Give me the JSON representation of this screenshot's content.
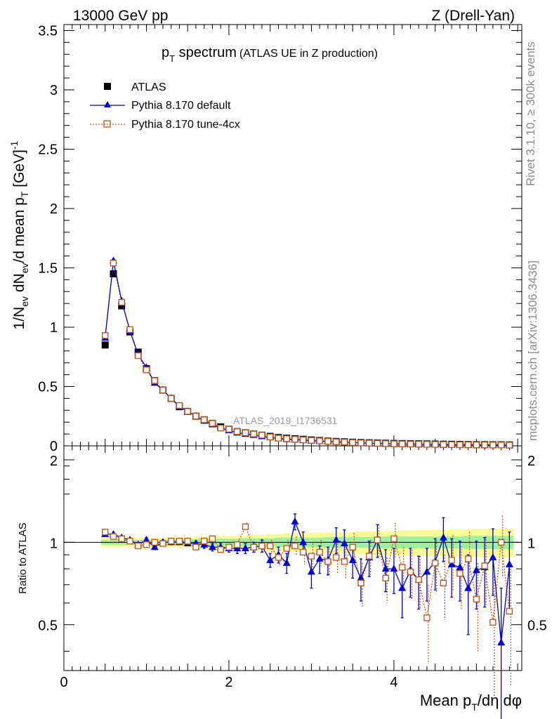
{
  "header": {
    "left": "13000 GeV pp",
    "right": "Z (Drell-Yan)"
  },
  "side_text": {
    "rivet": "Rivet 3.1.10, ≥ 300k events",
    "mcplots": "mcplots.cern.ch [arXiv:1306.3436]"
  },
  "watermark": "ATLAS_2019_I1736531",
  "colors": {
    "atlas": "#000000",
    "default": "#0000cc",
    "tune": "#c05a1e",
    "band_inner": "#a0f0a0",
    "band_outer": "#fafa96"
  },
  "chart_data": [
    {
      "type": "line",
      "panel": "main",
      "title": "p_T spectrum (ATLAS UE in Z production)",
      "title_main": "p",
      "title_sub": "T",
      "title_word": " spectrum",
      "title_paren": "(ATLAS UE in Z production)",
      "ylabel": "1/N_ev dN_ev/d mean p_T [GeV]^-1",
      "ylim": [
        0,
        3.55
      ],
      "xlim": [
        0,
        5.55
      ],
      "yticks": [
        "0",
        "0.5",
        "1",
        "1.5",
        "2",
        "2.5",
        "3",
        "3.5"
      ],
      "legend": [
        "ATLAS",
        "Pythia 8.170 default",
        "Pythia 8.170 tune-4cx"
      ],
      "x": [
        0.5,
        0.6,
        0.7,
        0.8,
        0.9,
        1.0,
        1.1,
        1.2,
        1.3,
        1.4,
        1.5,
        1.6,
        1.7,
        1.8,
        1.9,
        2.0,
        2.1,
        2.2,
        2.3,
        2.4,
        2.5,
        2.6,
        2.7,
        2.8,
        2.9,
        3.0,
        3.1,
        3.2,
        3.3,
        3.4,
        3.5,
        3.6,
        3.7,
        3.8,
        3.9,
        4.0,
        4.1,
        4.2,
        4.3,
        4.4,
        4.5,
        4.6,
        4.7,
        4.8,
        4.9,
        5.0,
        5.1,
        5.2,
        5.3,
        5.4
      ],
      "series": [
        {
          "name": "ATLAS",
          "values": [
            0.85,
            1.45,
            1.18,
            0.96,
            0.79,
            0.65,
            0.55,
            0.47,
            0.4,
            0.33,
            0.29,
            0.25,
            0.22,
            0.19,
            0.16,
            0.14,
            0.12,
            0.11,
            0.1,
            0.09,
            0.08,
            0.07,
            0.065,
            0.06,
            0.055,
            0.05,
            0.045,
            0.04,
            0.037,
            0.034,
            0.031,
            0.028,
            0.026,
            0.024,
            0.022,
            0.02,
            0.019,
            0.018,
            0.017,
            0.016,
            0.015,
            0.014,
            0.013,
            0.012,
            0.011,
            0.01,
            0.01,
            0.009,
            0.009,
            0.008
          ]
        },
        {
          "name": "Pythia 8.170 default",
          "values": [
            0.91,
            1.56,
            1.22,
            0.97,
            0.77,
            0.66,
            0.53,
            0.47,
            0.4,
            0.33,
            0.29,
            0.25,
            0.21,
            0.18,
            0.15,
            0.13,
            0.11,
            0.1,
            0.09,
            0.08,
            0.07,
            0.062,
            0.055,
            0.052,
            0.048,
            0.043,
            0.04,
            0.036,
            0.033,
            0.03,
            0.027,
            0.025,
            0.023,
            0.021,
            0.019,
            0.017,
            0.016,
            0.015,
            0.014,
            0.013,
            0.012,
            0.011,
            0.01,
            0.009,
            0.009,
            0.008,
            0.008,
            0.007,
            0.007,
            0.006
          ]
        },
        {
          "name": "Pythia 8.170 tune-4cx",
          "values": [
            0.93,
            1.54,
            1.21,
            0.98,
            0.76,
            0.64,
            0.55,
            0.47,
            0.4,
            0.34,
            0.29,
            0.25,
            0.22,
            0.19,
            0.15,
            0.14,
            0.12,
            0.11,
            0.1,
            0.09,
            0.075,
            0.065,
            0.06,
            0.055,
            0.05,
            0.046,
            0.042,
            0.038,
            0.034,
            0.031,
            0.028,
            0.025,
            0.023,
            0.021,
            0.019,
            0.017,
            0.016,
            0.015,
            0.014,
            0.013,
            0.012,
            0.011,
            0.01,
            0.009,
            0.009,
            0.008,
            0.008,
            0.007,
            0.007,
            0.006
          ]
        }
      ]
    },
    {
      "type": "line",
      "panel": "ratio",
      "ylabel": "Ratio to ATLAS",
      "xlabel": "Mean p_T/dη dφ",
      "xlabel_main": "Mean p",
      "xlabel_sub": "T",
      "xlabel_rest": "/dη dφ",
      "ylim": [
        0.34,
        2.25
      ],
      "xlim": [
        0,
        5.55
      ],
      "yticks": [
        "0.5",
        "1",
        "2"
      ],
      "xticks": [
        "0",
        "2",
        "4"
      ],
      "x": [
        0.5,
        0.6,
        0.7,
        0.8,
        0.9,
        1.0,
        1.1,
        1.2,
        1.3,
        1.4,
        1.5,
        1.6,
        1.7,
        1.8,
        1.9,
        2.0,
        2.1,
        2.2,
        2.3,
        2.4,
        2.5,
        2.6,
        2.7,
        2.8,
        2.9,
        3.0,
        3.1,
        3.2,
        3.3,
        3.4,
        3.5,
        3.6,
        3.7,
        3.8,
        3.9,
        4.0,
        4.1,
        4.2,
        4.3,
        4.4,
        4.5,
        4.6,
        4.7,
        4.8,
        4.9,
        5.0,
        5.1,
        5.2,
        5.3,
        5.4
      ],
      "band_inner": [
        0.02,
        0.02,
        0.02,
        0.02,
        0.02,
        0.02,
        0.02,
        0.02,
        0.02,
        0.02,
        0.025,
        0.025,
        0.025,
        0.03,
        0.03,
        0.03,
        0.03,
        0.035,
        0.035,
        0.035,
        0.035,
        0.04,
        0.04,
        0.04,
        0.04,
        0.04,
        0.04,
        0.045,
        0.045,
        0.045,
        0.045,
        0.045,
        0.045,
        0.045,
        0.05,
        0.05,
        0.05,
        0.05,
        0.05,
        0.05,
        0.05,
        0.05,
        0.05,
        0.05,
        0.055,
        0.055,
        0.055,
        0.055,
        0.055,
        0.055
      ],
      "band_outer": [
        0.04,
        0.04,
        0.04,
        0.04,
        0.04,
        0.04,
        0.04,
        0.04,
        0.045,
        0.045,
        0.045,
        0.05,
        0.05,
        0.05,
        0.055,
        0.055,
        0.06,
        0.06,
        0.065,
        0.065,
        0.07,
        0.07,
        0.075,
        0.075,
        0.08,
        0.08,
        0.085,
        0.085,
        0.09,
        0.09,
        0.09,
        0.095,
        0.095,
        0.1,
        0.1,
        0.1,
        0.105,
        0.105,
        0.11,
        0.11,
        0.11,
        0.11,
        0.115,
        0.115,
        0.115,
        0.12,
        0.12,
        0.12,
        0.12,
        0.12
      ],
      "series": [
        {
          "name": "Pythia 8.170 default",
          "values": [
            1.07,
            1.07,
            1.04,
            1.02,
            0.98,
            1.02,
            0.96,
            1.0,
            1.0,
            1.0,
            0.99,
            0.99,
            0.98,
            0.96,
            0.96,
            0.95,
            0.95,
            0.95,
            0.96,
            0.97,
            0.86,
            0.9,
            0.84,
            1.19,
            1.0,
            0.78,
            0.87,
            0.86,
            1.02,
            0.99,
            0.86,
            0.74,
            0.88,
            1.02,
            0.8,
            0.8,
            0.68,
            0.79,
            0.73,
            0.78,
            0.85,
            1.04,
            0.83,
            0.81,
            0.68,
            0.79,
            0.81,
            0.88,
            0.43,
            0.83
          ],
          "err": [
            0.01,
            0.01,
            0.01,
            0.01,
            0.01,
            0.02,
            0.02,
            0.02,
            0.02,
            0.02,
            0.02,
            0.02,
            0.03,
            0.03,
            0.03,
            0.03,
            0.04,
            0.04,
            0.04,
            0.05,
            0.05,
            0.06,
            0.07,
            0.08,
            0.09,
            0.1,
            0.1,
            0.1,
            0.11,
            0.12,
            0.12,
            0.13,
            0.13,
            0.14,
            0.14,
            0.15,
            0.15,
            0.16,
            0.16,
            0.17,
            0.18,
            0.19,
            0.2,
            0.2,
            0.22,
            0.22,
            0.23,
            0.24,
            0.25,
            0.26
          ]
        },
        {
          "name": "Pythia 8.170 tune-4cx",
          "values": [
            1.09,
            1.05,
            1.03,
            1.01,
            0.97,
            0.98,
            1.0,
            0.99,
            1.01,
            1.01,
            1.01,
            0.96,
            1.01,
            1.03,
            0.94,
            0.96,
            0.98,
            1.14,
            0.96,
            0.97,
            0.97,
            0.88,
            0.95,
            0.97,
            0.92,
            0.89,
            0.92,
            0.85,
            0.88,
            0.85,
            0.96,
            0.71,
            0.89,
            1.02,
            0.74,
            1.03,
            0.81,
            0.78,
            0.73,
            0.53,
            0.84,
            0.71,
            0.86,
            0.77,
            0.87,
            0.62,
            0.82,
            0.51,
            1.0,
            0.56
          ],
          "err": [
            0.01,
            0.01,
            0.01,
            0.01,
            0.01,
            0.02,
            0.02,
            0.02,
            0.02,
            0.02,
            0.02,
            0.02,
            0.03,
            0.03,
            0.03,
            0.03,
            0.04,
            0.04,
            0.04,
            0.05,
            0.05,
            0.06,
            0.07,
            0.08,
            0.09,
            0.1,
            0.1,
            0.1,
            0.11,
            0.12,
            0.12,
            0.13,
            0.13,
            0.14,
            0.14,
            0.15,
            0.15,
            0.16,
            0.16,
            0.17,
            0.18,
            0.19,
            0.2,
            0.2,
            0.22,
            0.22,
            0.23,
            0.24,
            0.25,
            0.26
          ]
        }
      ]
    }
  ]
}
